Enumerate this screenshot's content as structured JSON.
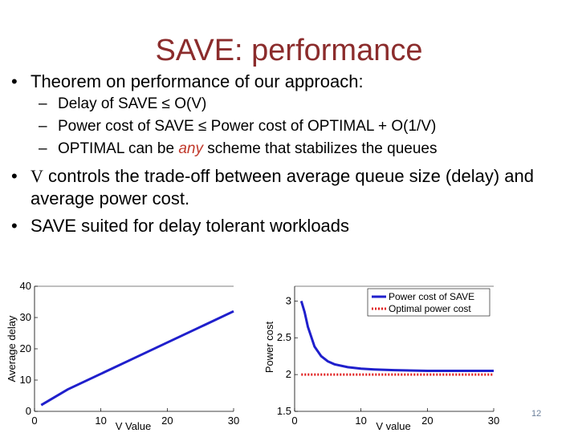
{
  "slide": {
    "title": "SAVE: performance",
    "bullet1": "Theorem on performance of our approach:",
    "sub1": "Delay of SAVE ≤ O(V)",
    "sub2": "Power cost of SAVE ≤ Power cost of OPTIMAL + O(1/V)",
    "sub3_a": "OPTIMAL can be ",
    "sub3_em": "any",
    "sub3_b": " scheme that stabilizes the queues",
    "bullet2_v": "V",
    "bullet2": " controls the trade-off between average queue size (delay) and average power cost.",
    "bullet3": "SAVE suited for delay tolerant workloads",
    "page_number": "12"
  },
  "colors": {
    "title": "#8b2c2c",
    "emphasis": "#c0392b",
    "series_blue": "#1f1fcc",
    "series_red": "#e02020"
  },
  "chart_data": [
    {
      "type": "line",
      "title": "",
      "xlabel": "V Value",
      "ylabel": "Average delay",
      "xlim": [
        0,
        30
      ],
      "ylim": [
        0,
        40
      ],
      "xticks": [
        0,
        10,
        20,
        30
      ],
      "yticks": [
        0,
        10,
        20,
        30,
        40
      ],
      "series": [
        {
          "color": "#1f1fcc",
          "x": [
            1,
            5,
            10,
            15,
            20,
            25,
            30
          ],
          "y": [
            2,
            7,
            12,
            17,
            22,
            27,
            32
          ]
        }
      ]
    },
    {
      "type": "line",
      "title": "",
      "xlabel": "V value",
      "ylabel": "Power cost",
      "xlim": [
        0,
        30
      ],
      "ylim": [
        1.5,
        3.2
      ],
      "xticks": [
        0,
        10,
        20,
        30
      ],
      "yticks": [
        1.5,
        2,
        2.5,
        3
      ],
      "legend_position": "top-right",
      "series": [
        {
          "name": "Power cost of SAVE",
          "color": "#1f1fcc",
          "style": "solid",
          "x": [
            1,
            1.5,
            2,
            3,
            4,
            5,
            6,
            8,
            10,
            12,
            15,
            20,
            25,
            30
          ],
          "y": [
            3.0,
            2.85,
            2.65,
            2.38,
            2.25,
            2.18,
            2.14,
            2.1,
            2.08,
            2.07,
            2.06,
            2.05,
            2.05,
            2.05
          ]
        },
        {
          "name": "Optimal power cost",
          "color": "#e02020",
          "style": "dotted",
          "x": [
            1,
            30
          ],
          "y": [
            2.0,
            2.0
          ]
        }
      ]
    }
  ]
}
